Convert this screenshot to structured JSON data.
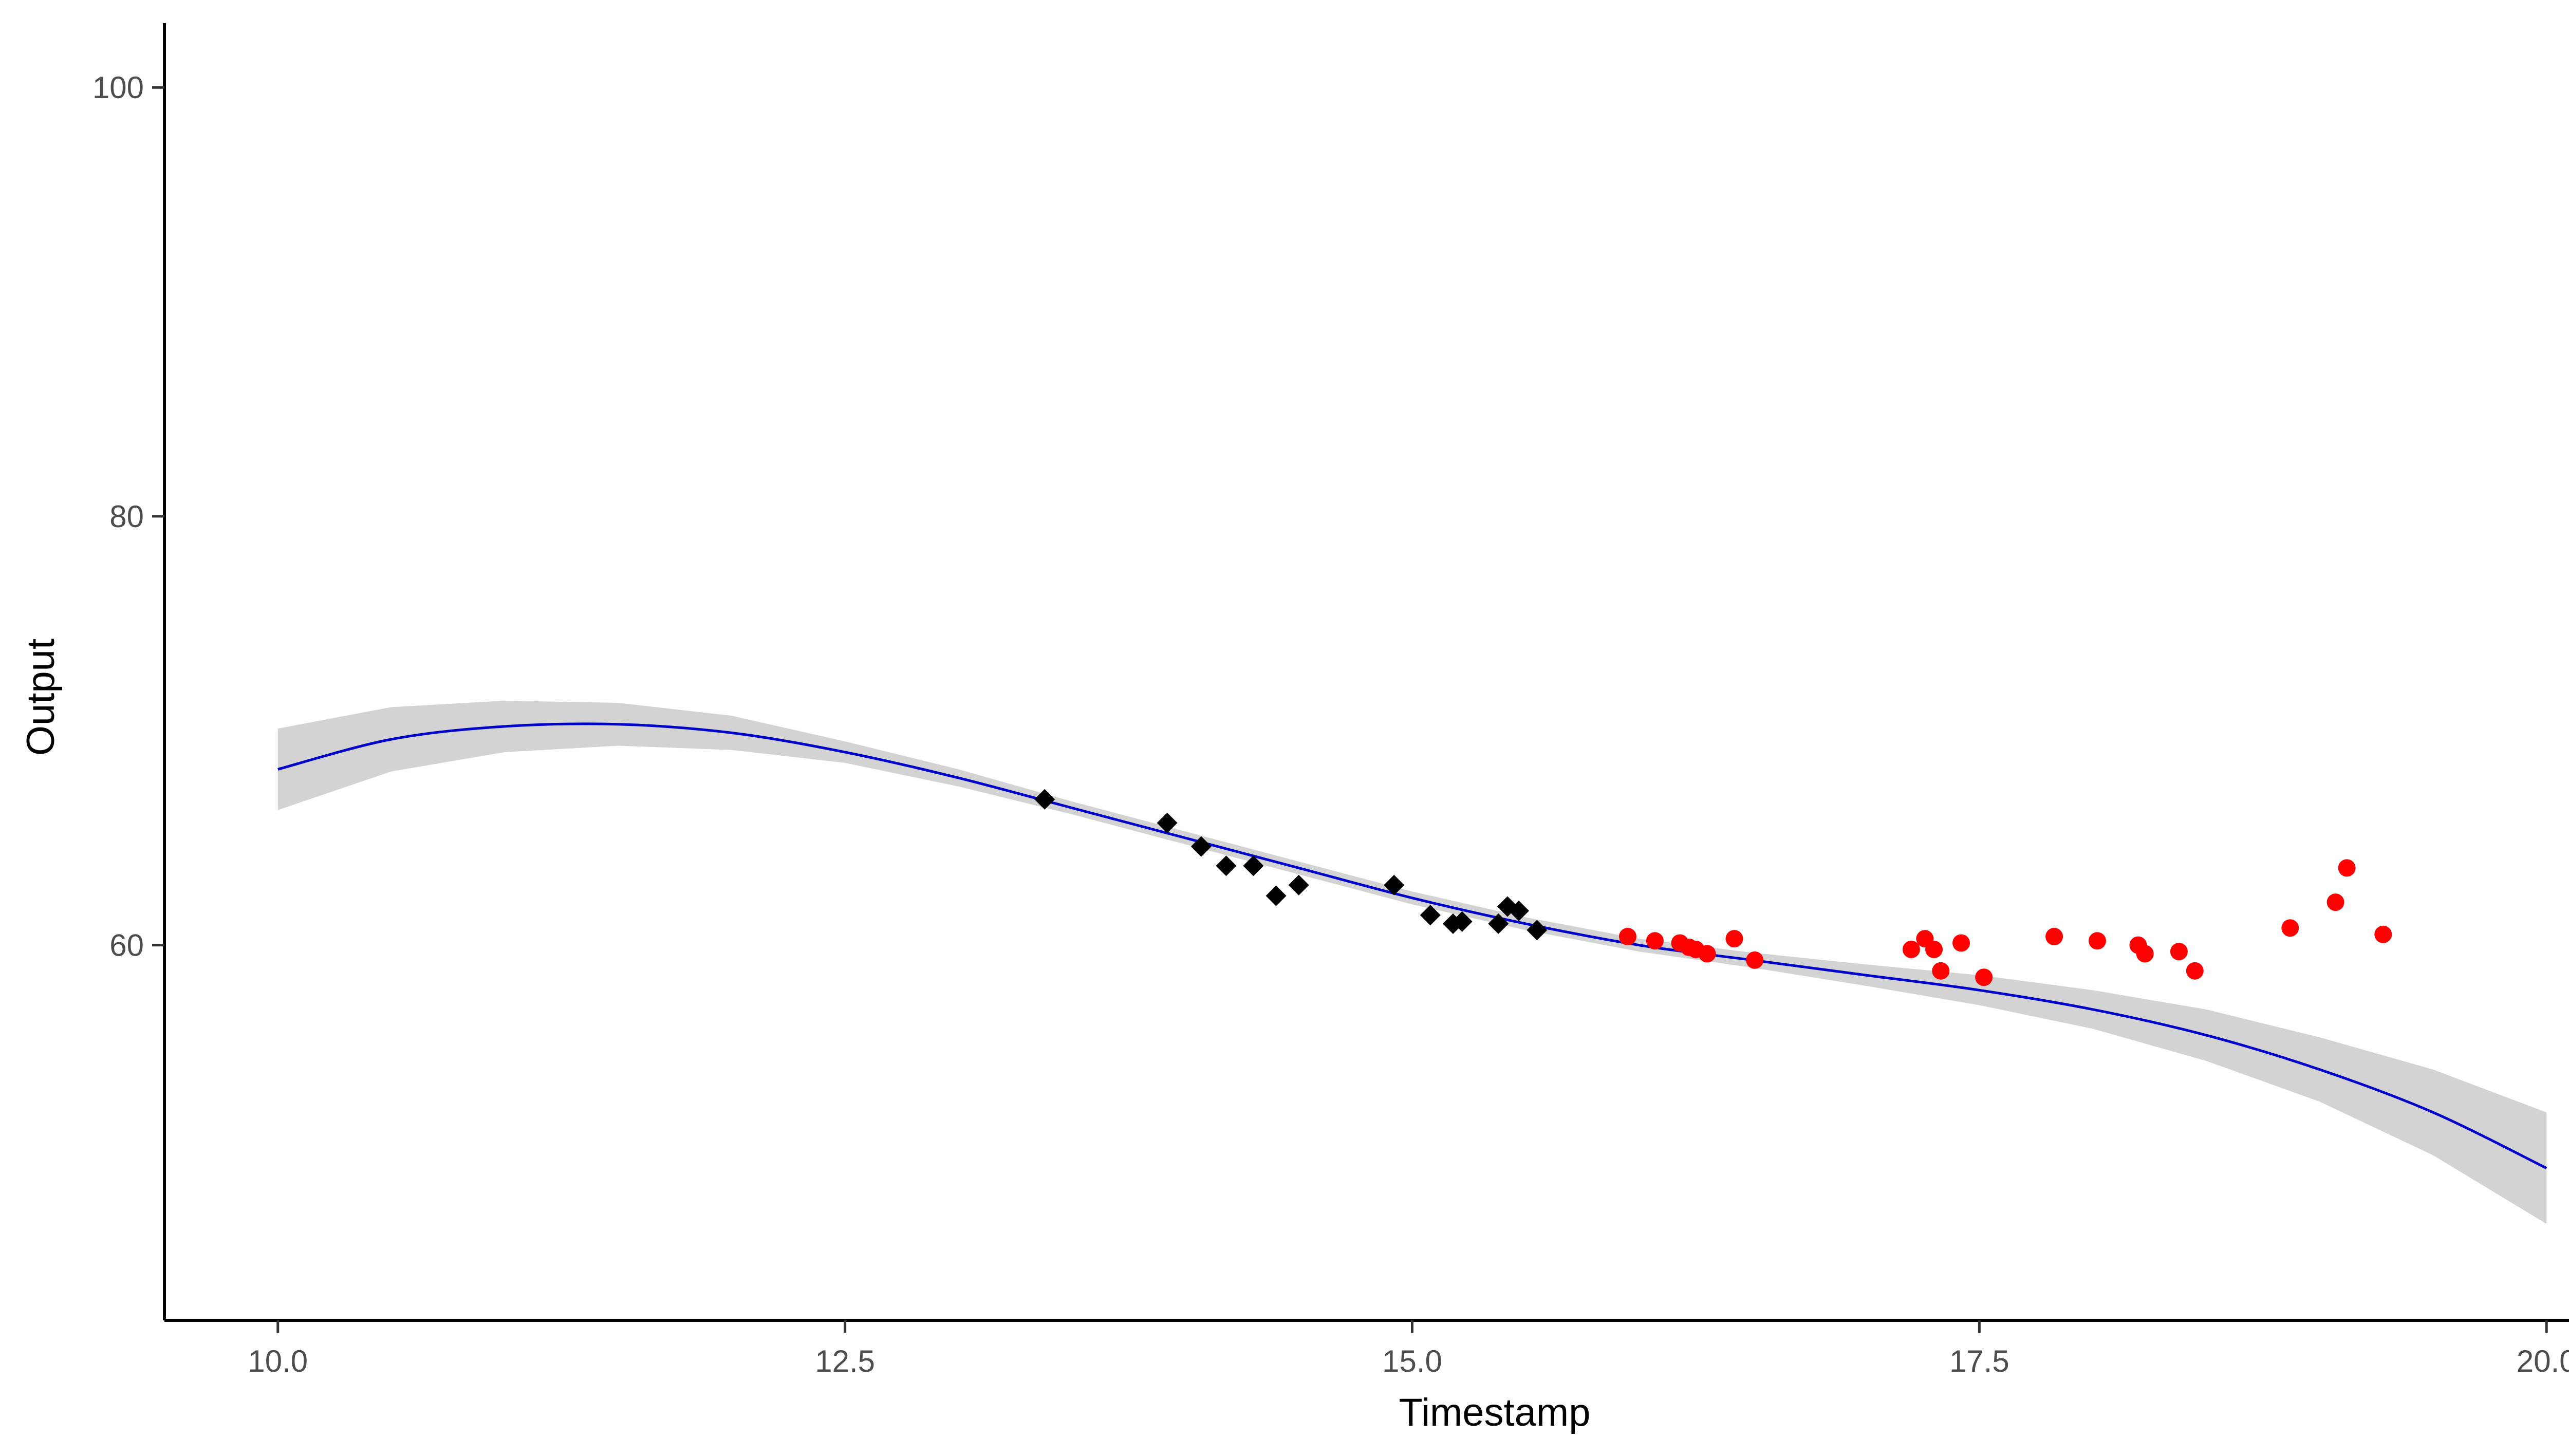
{
  "chart_data": {
    "type": "scatter",
    "xlabel": "Timestamp",
    "ylabel": "Output",
    "xlim": [
      9.5,
      20.5
    ],
    "ylim": [
      42.5,
      103
    ],
    "xticks": [
      "10.0",
      "12.5",
      "15.0",
      "17.5",
      "20.0"
    ],
    "xtick_values": [
      10.0,
      12.5,
      15.0,
      17.5,
      20.0
    ],
    "yticks": [
      "60",
      "80",
      "100"
    ],
    "ytick_values": [
      60,
      80,
      100
    ],
    "grid": false,
    "series": [
      {
        "marker": "diamond",
        "color": "#000000",
        "points": [
          [
            13.38,
            66.8
          ],
          [
            13.92,
            65.7
          ],
          [
            14.07,
            64.6
          ],
          [
            14.18,
            63.7
          ],
          [
            14.3,
            63.7
          ],
          [
            14.4,
            62.3
          ],
          [
            14.5,
            62.8
          ],
          [
            14.92,
            62.8
          ],
          [
            15.08,
            61.4
          ],
          [
            15.18,
            61.0
          ],
          [
            15.22,
            61.1
          ],
          [
            15.38,
            61.0
          ],
          [
            15.42,
            61.8
          ],
          [
            15.47,
            61.6
          ],
          [
            15.55,
            60.7
          ]
        ]
      },
      {
        "marker": "circle",
        "color": "#ff0000",
        "points": [
          [
            15.95,
            60.4
          ],
          [
            16.07,
            60.2
          ],
          [
            16.18,
            60.1
          ],
          [
            16.22,
            59.9
          ],
          [
            16.25,
            59.8
          ],
          [
            16.3,
            59.6
          ],
          [
            16.42,
            60.3
          ],
          [
            16.51,
            59.3
          ],
          [
            17.2,
            59.8
          ],
          [
            17.26,
            60.3
          ],
          [
            17.3,
            59.8
          ],
          [
            17.33,
            58.8
          ],
          [
            17.42,
            60.1
          ],
          [
            17.52,
            58.5
          ],
          [
            17.83,
            60.4
          ],
          [
            18.02,
            60.2
          ],
          [
            18.2,
            60.0
          ],
          [
            18.23,
            59.6
          ],
          [
            18.38,
            59.7
          ],
          [
            18.45,
            58.8
          ],
          [
            18.87,
            60.8
          ],
          [
            19.07,
            62.0
          ],
          [
            19.12,
            63.6
          ],
          [
            19.28,
            60.5
          ]
        ]
      }
    ],
    "fit": {
      "color": "#0000cc",
      "band_color": "#d3d3d3",
      "curve": [
        [
          10.0,
          68.2
        ],
        [
          10.5,
          69.6
        ],
        [
          11.0,
          70.2
        ],
        [
          11.5,
          70.3
        ],
        [
          12.0,
          69.9
        ],
        [
          12.5,
          69.0
        ],
        [
          13.0,
          67.8
        ],
        [
          13.5,
          66.4
        ],
        [
          14.0,
          65.0
        ],
        [
          14.5,
          63.6
        ],
        [
          15.0,
          62.2
        ],
        [
          15.5,
          61.0
        ],
        [
          16.0,
          60.0
        ],
        [
          16.5,
          59.3
        ],
        [
          17.0,
          58.6
        ],
        [
          17.5,
          57.9
        ],
        [
          18.0,
          57.0
        ],
        [
          18.5,
          55.8
        ],
        [
          19.0,
          54.2
        ],
        [
          19.5,
          52.2
        ],
        [
          20.0,
          49.6
        ]
      ],
      "band_half_width": [
        1.9,
        1.5,
        1.2,
        1.0,
        0.8,
        0.5,
        0.4,
        0.3,
        0.3,
        0.3,
        0.3,
        0.3,
        0.3,
        0.35,
        0.5,
        0.7,
        0.9,
        1.2,
        1.5,
        2.0,
        2.6
      ]
    }
  }
}
